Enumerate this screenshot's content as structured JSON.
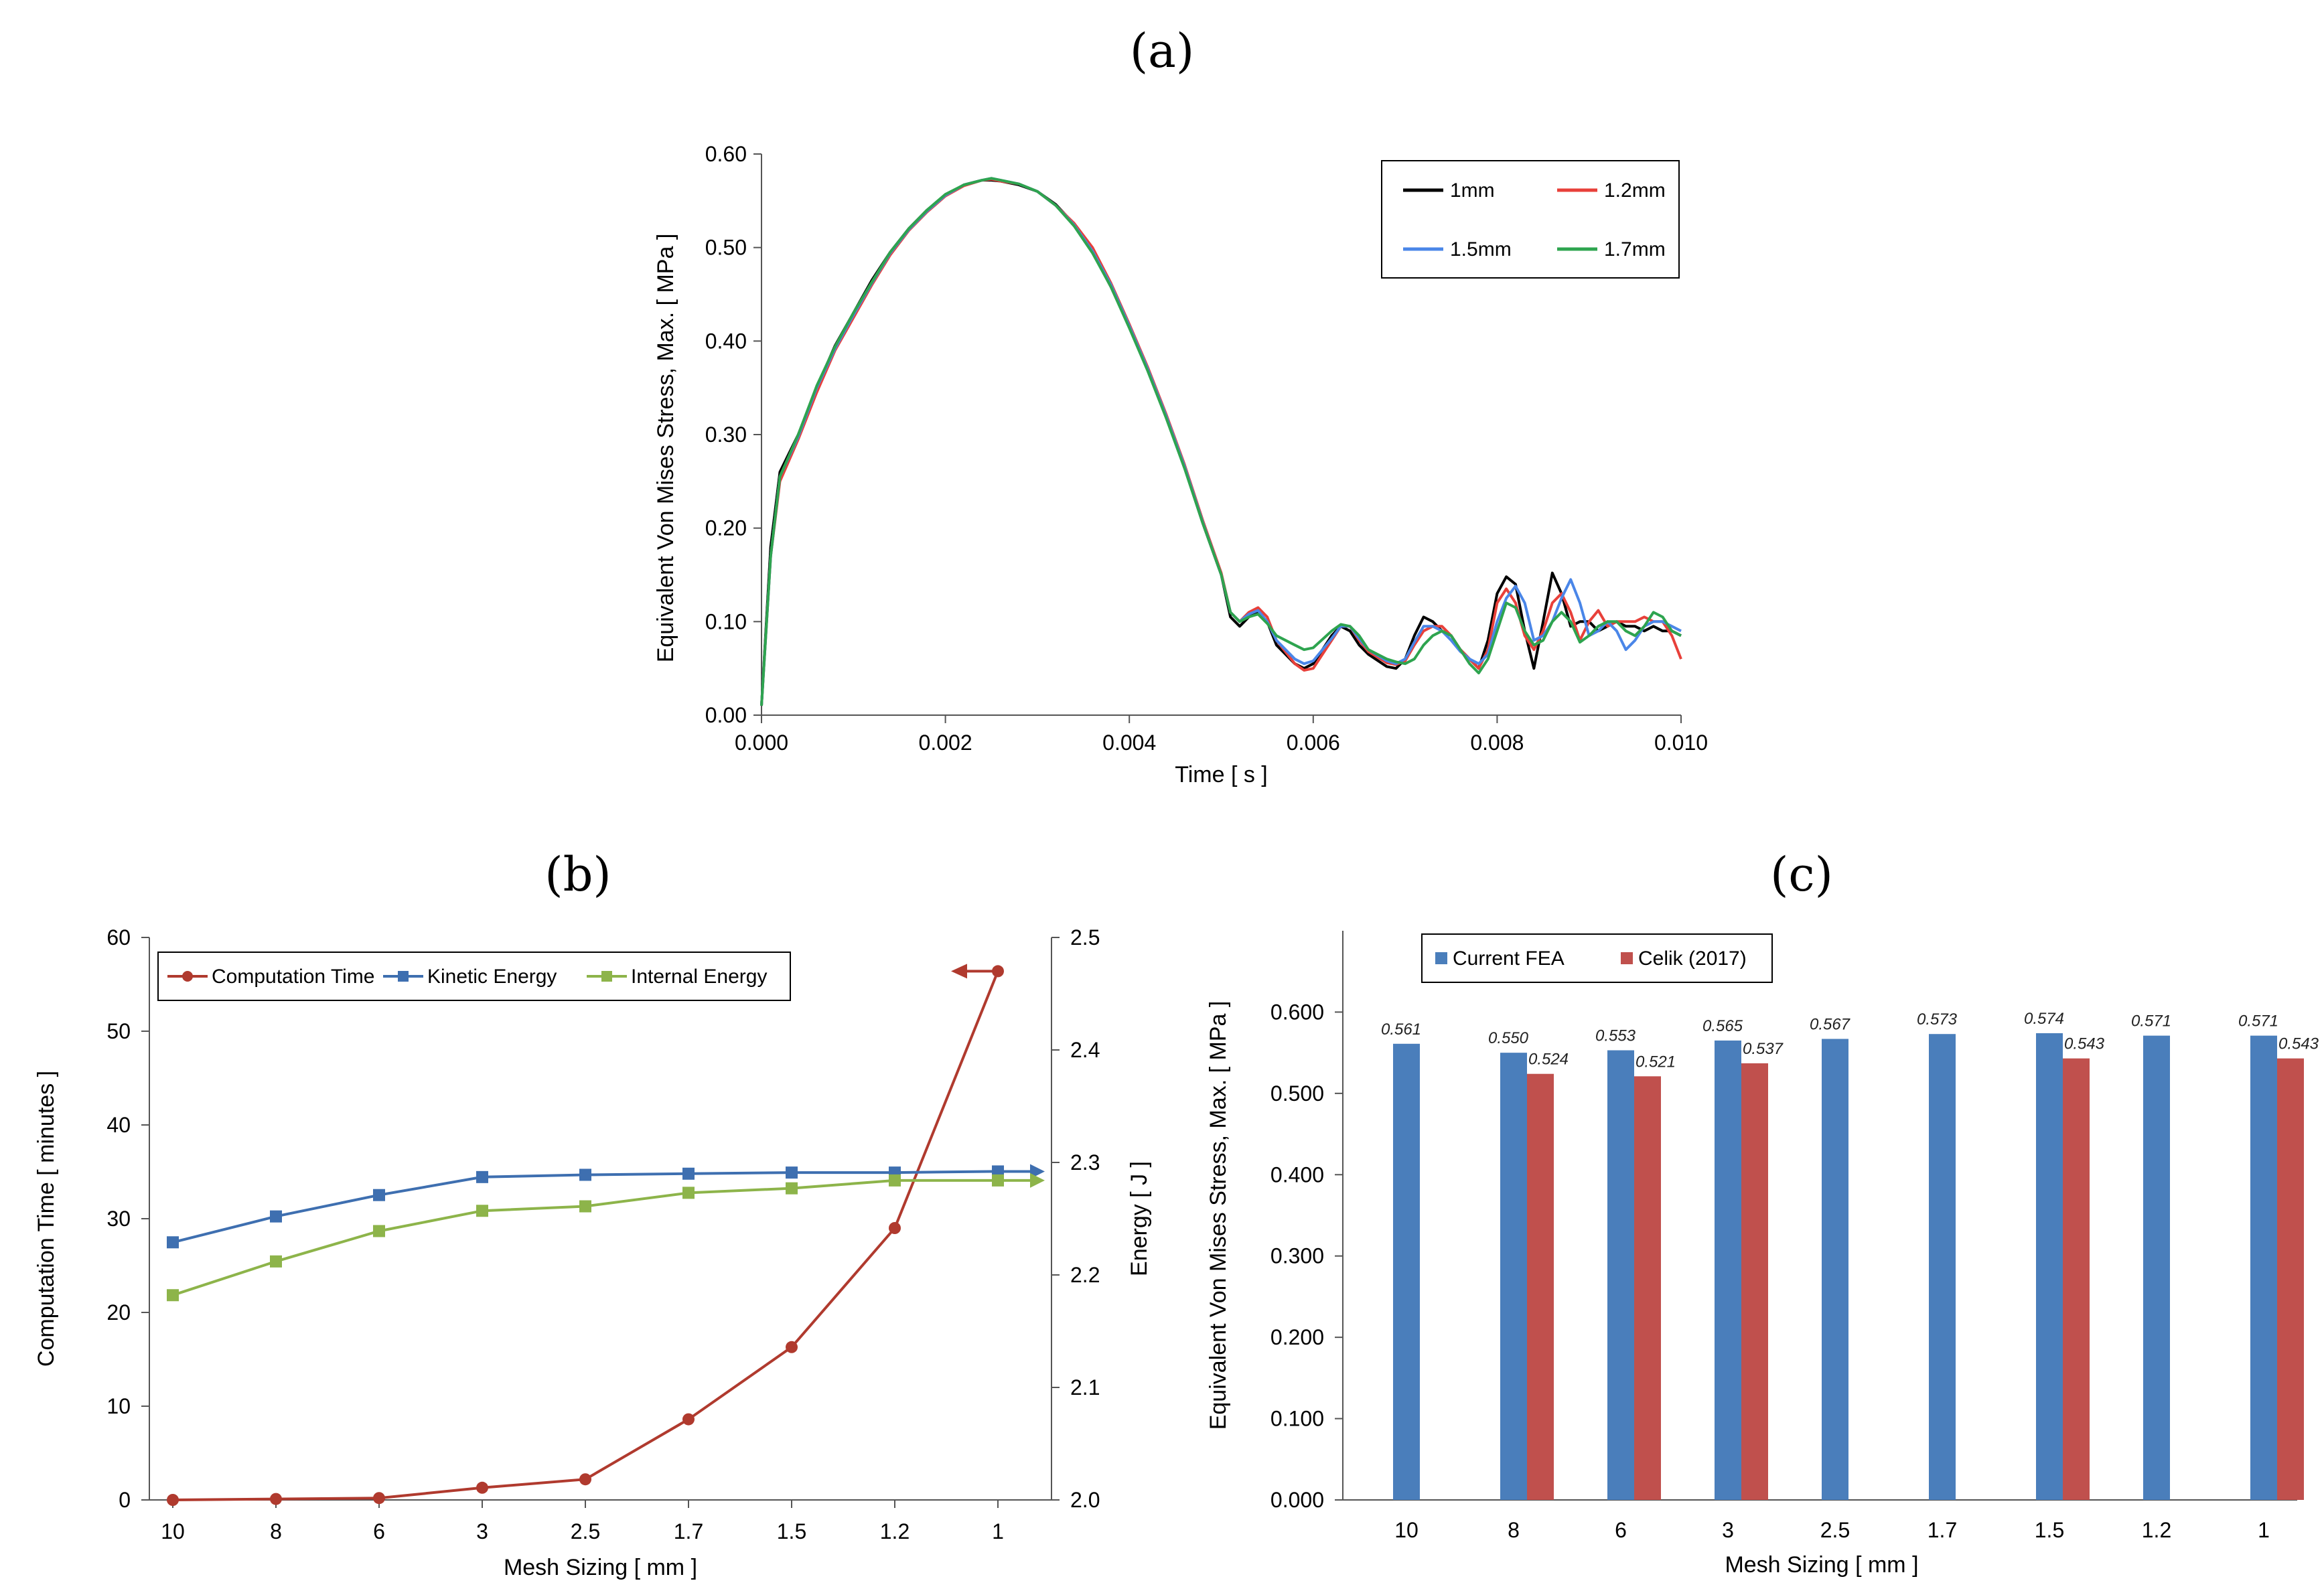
{
  "colors": {
    "black": "#000000",
    "red": "#e8403a",
    "blue": "#4a86e8",
    "green": "#2ea44f",
    "comp_red": "#b03a2e",
    "kinetic_blue": "#3e6fb0",
    "internal_green": "#8db44a",
    "bar_blue": "#4a7ebb",
    "bar_red": "#c0504d"
  },
  "chart_data": [
    {
      "id": "a",
      "panel_label": "(a)",
      "type": "line",
      "xlabel": "Time [ s ]",
      "ylabel": "Equivalent Von Mises Stress, Max. [ MPa ]",
      "xlim": [
        0,
        0.01
      ],
      "ylim": [
        0,
        0.6
      ],
      "x_ticks": [
        "0.000",
        "0.002",
        "0.004",
        "0.006",
        "0.008",
        "0.010"
      ],
      "y_ticks": [
        "0.00",
        "0.10",
        "0.20",
        "0.30",
        "0.40",
        "0.50",
        "0.60"
      ],
      "legend": [
        "1mm",
        "1.2mm",
        "1.5mm",
        "1.7mm"
      ],
      "series": [
        {
          "name": "1mm",
          "color_key": "black",
          "x": [
            0,
            0.0001,
            0.0002,
            0.0004,
            0.0006,
            0.0008,
            0.001,
            0.0012,
            0.0014,
            0.0016,
            0.0018,
            0.002,
            0.0022,
            0.0024,
            0.0025,
            0.0026,
            0.0028,
            0.003,
            0.0032,
            0.0034,
            0.0036,
            0.0038,
            0.004,
            0.0042,
            0.0044,
            0.0046,
            0.0048,
            0.005,
            0.0051,
            0.0052,
            0.0053,
            0.0054,
            0.0055,
            0.0056,
            0.0058,
            0.0059,
            0.006,
            0.0062,
            0.0063,
            0.0064,
            0.0065,
            0.0066,
            0.0068,
            0.0069,
            0.007,
            0.0071,
            0.0072,
            0.0073,
            0.0074,
            0.0075,
            0.0076,
            0.0077,
            0.0078,
            0.0079,
            0.008,
            0.0081,
            0.0082,
            0.0083,
            0.0084,
            0.0085,
            0.0086,
            0.0087,
            0.0088,
            0.0089,
            0.009,
            0.0091,
            0.0092,
            0.0093,
            0.0094,
            0.0095,
            0.0096,
            0.0097,
            0.0098,
            0.0099,
            0.01
          ],
          "y": [
            0.01,
            0.18,
            0.26,
            0.3,
            0.35,
            0.395,
            0.43,
            0.465,
            0.495,
            0.52,
            0.54,
            0.556,
            0.567,
            0.572,
            0.572,
            0.571,
            0.567,
            0.56,
            0.546,
            0.525,
            0.495,
            0.458,
            0.415,
            0.37,
            0.32,
            0.265,
            0.205,
            0.15,
            0.105,
            0.095,
            0.105,
            0.11,
            0.1,
            0.075,
            0.055,
            0.05,
            0.055,
            0.085,
            0.095,
            0.09,
            0.075,
            0.065,
            0.052,
            0.05,
            0.06,
            0.085,
            0.105,
            0.1,
            0.09,
            0.085,
            0.07,
            0.06,
            0.05,
            0.08,
            0.13,
            0.148,
            0.14,
            0.09,
            0.05,
            0.1,
            0.152,
            0.13,
            0.095,
            0.1,
            0.1,
            0.09,
            0.095,
            0.1,
            0.095,
            0.095,
            0.09,
            0.095,
            0.09,
            0.09,
            0.085
          ]
        },
        {
          "name": "1.2mm",
          "color_key": "red",
          "x": [
            0,
            0.0001,
            0.0002,
            0.0004,
            0.0006,
            0.0008,
            0.001,
            0.0012,
            0.0014,
            0.0016,
            0.0018,
            0.002,
            0.0022,
            0.0024,
            0.0025,
            0.0026,
            0.0028,
            0.003,
            0.0032,
            0.0034,
            0.0036,
            0.0038,
            0.004,
            0.0042,
            0.0044,
            0.0046,
            0.0048,
            0.005,
            0.0051,
            0.0052,
            0.0053,
            0.0054,
            0.0055,
            0.0056,
            0.0058,
            0.0059,
            0.006,
            0.0062,
            0.0063,
            0.0064,
            0.0065,
            0.0066,
            0.0068,
            0.0069,
            0.007,
            0.0071,
            0.0072,
            0.0073,
            0.0074,
            0.0075,
            0.0076,
            0.0077,
            0.0078,
            0.0079,
            0.008,
            0.0081,
            0.0082,
            0.0083,
            0.0084,
            0.0085,
            0.0086,
            0.0087,
            0.0088,
            0.0089,
            0.009,
            0.0091,
            0.0092,
            0.0093,
            0.0094,
            0.0095,
            0.0096,
            0.0097,
            0.0098,
            0.0099,
            0.01
          ],
          "y": [
            0.01,
            0.17,
            0.25,
            0.295,
            0.345,
            0.39,
            0.425,
            0.46,
            0.492,
            0.518,
            0.538,
            0.555,
            0.566,
            0.572,
            0.573,
            0.571,
            0.568,
            0.56,
            0.545,
            0.526,
            0.5,
            0.462,
            0.418,
            0.372,
            0.322,
            0.268,
            0.208,
            0.152,
            0.11,
            0.1,
            0.11,
            0.115,
            0.105,
            0.08,
            0.055,
            0.048,
            0.05,
            0.08,
            0.095,
            0.095,
            0.08,
            0.068,
            0.056,
            0.054,
            0.058,
            0.075,
            0.09,
            0.095,
            0.095,
            0.085,
            0.07,
            0.06,
            0.05,
            0.07,
            0.12,
            0.135,
            0.12,
            0.085,
            0.07,
            0.09,
            0.12,
            0.13,
            0.11,
            0.08,
            0.1,
            0.112,
            0.095,
            0.1,
            0.1,
            0.1,
            0.105,
            0.1,
            0.1,
            0.085,
            0.06
          ]
        },
        {
          "name": "1.5mm",
          "color_key": "blue",
          "x": [
            0,
            0.0001,
            0.0002,
            0.0004,
            0.0006,
            0.0008,
            0.001,
            0.0012,
            0.0014,
            0.0016,
            0.0018,
            0.002,
            0.0022,
            0.0024,
            0.0025,
            0.0026,
            0.0028,
            0.003,
            0.0032,
            0.0034,
            0.0036,
            0.0038,
            0.004,
            0.0042,
            0.0044,
            0.0046,
            0.0048,
            0.005,
            0.0051,
            0.0052,
            0.0053,
            0.0054,
            0.0055,
            0.0056,
            0.0058,
            0.0059,
            0.006,
            0.0062,
            0.0063,
            0.0064,
            0.0065,
            0.0066,
            0.0068,
            0.0069,
            0.007,
            0.0071,
            0.0072,
            0.0073,
            0.0074,
            0.0075,
            0.0076,
            0.0077,
            0.0078,
            0.0079,
            0.008,
            0.0081,
            0.0082,
            0.0083,
            0.0084,
            0.0085,
            0.0086,
            0.0087,
            0.0088,
            0.0089,
            0.009,
            0.0091,
            0.0092,
            0.0093,
            0.0094,
            0.0095,
            0.0096,
            0.0097,
            0.0098,
            0.0099,
            0.01
          ],
          "y": [
            0.01,
            0.17,
            0.255,
            0.298,
            0.35,
            0.392,
            0.428,
            0.462,
            0.494,
            0.519,
            0.539,
            0.556,
            0.567,
            0.572,
            0.574,
            0.572,
            0.568,
            0.56,
            0.545,
            0.524,
            0.496,
            0.46,
            0.416,
            0.37,
            0.32,
            0.266,
            0.206,
            0.15,
            0.11,
            0.1,
            0.108,
            0.112,
            0.1,
            0.08,
            0.06,
            0.055,
            0.058,
            0.082,
            0.095,
            0.095,
            0.082,
            0.07,
            0.058,
            0.055,
            0.06,
            0.078,
            0.095,
            0.095,
            0.09,
            0.08,
            0.068,
            0.06,
            0.055,
            0.065,
            0.1,
            0.125,
            0.138,
            0.12,
            0.08,
            0.085,
            0.1,
            0.125,
            0.145,
            0.12,
            0.085,
            0.09,
            0.1,
            0.09,
            0.07,
            0.08,
            0.095,
            0.1,
            0.1,
            0.095,
            0.09
          ]
        },
        {
          "name": "1.7mm",
          "color_key": "green",
          "x": [
            0,
            0.0001,
            0.0002,
            0.0004,
            0.0006,
            0.0008,
            0.001,
            0.0012,
            0.0014,
            0.0016,
            0.0018,
            0.002,
            0.0022,
            0.0024,
            0.0025,
            0.0026,
            0.0028,
            0.003,
            0.0032,
            0.0034,
            0.0036,
            0.0038,
            0.004,
            0.0042,
            0.0044,
            0.0046,
            0.0048,
            0.005,
            0.0051,
            0.0052,
            0.0053,
            0.0054,
            0.0055,
            0.0056,
            0.0058,
            0.0059,
            0.006,
            0.0062,
            0.0063,
            0.0064,
            0.0065,
            0.0066,
            0.0068,
            0.0069,
            0.007,
            0.0071,
            0.0072,
            0.0073,
            0.0074,
            0.0075,
            0.0076,
            0.0077,
            0.0078,
            0.0079,
            0.008,
            0.0081,
            0.0082,
            0.0083,
            0.0084,
            0.0085,
            0.0086,
            0.0087,
            0.0088,
            0.0089,
            0.009,
            0.0091,
            0.0092,
            0.0093,
            0.0094,
            0.0095,
            0.0096,
            0.0097,
            0.0098,
            0.0099,
            0.01
          ],
          "y": [
            0.01,
            0.17,
            0.255,
            0.3,
            0.352,
            0.394,
            0.43,
            0.463,
            0.495,
            0.52,
            0.54,
            0.557,
            0.567,
            0.572,
            0.574,
            0.572,
            0.568,
            0.56,
            0.545,
            0.523,
            0.494,
            0.458,
            0.414,
            0.368,
            0.318,
            0.264,
            0.205,
            0.15,
            0.11,
            0.1,
            0.105,
            0.108,
            0.098,
            0.085,
            0.075,
            0.07,
            0.072,
            0.09,
            0.097,
            0.095,
            0.085,
            0.07,
            0.06,
            0.057,
            0.055,
            0.06,
            0.075,
            0.085,
            0.09,
            0.085,
            0.07,
            0.055,
            0.045,
            0.06,
            0.09,
            0.12,
            0.115,
            0.09,
            0.075,
            0.08,
            0.1,
            0.11,
            0.1,
            0.078,
            0.085,
            0.095,
            0.1,
            0.1,
            0.09,
            0.085,
            0.095,
            0.11,
            0.105,
            0.09,
            0.085
          ]
        }
      ]
    },
    {
      "id": "b",
      "panel_label": "(b)",
      "type": "line",
      "xlabel": "Mesh Sizing [ mm ]",
      "ylabel": "Computation Time [ minutes ]",
      "ylabel_right": "Energy [ J ]",
      "categories": [
        "10",
        "8",
        "6",
        "3",
        "2.5",
        "1.7",
        "1.5",
        "1.2",
        "1"
      ],
      "ylim": [
        0,
        60
      ],
      "ylim_right": [
        2.0,
        2.5
      ],
      "y_ticks": [
        "0",
        "10",
        "20",
        "30",
        "40",
        "50",
        "60"
      ],
      "y_ticks_right": [
        "2.0",
        "2.1",
        "2.2",
        "2.3",
        "2.4",
        "2.5"
      ],
      "series": [
        {
          "name": "Computation Time",
          "axis": "left",
          "color_key": "comp_red",
          "marker": "circle",
          "values": [
            0.0,
            0.1,
            0.2,
            1.3,
            2.2,
            8.6,
            16.3,
            29.0,
            56.4
          ]
        },
        {
          "name": "Kinetic Energy",
          "axis": "right",
          "color_key": "kinetic_blue",
          "marker": "square",
          "values": [
            2.229,
            2.252,
            2.271,
            2.287,
            2.289,
            2.29,
            2.291,
            2.291,
            2.292
          ]
        },
        {
          "name": "Internal Energy",
          "axis": "right",
          "color_key": "internal_green",
          "marker": "square",
          "values": [
            2.182,
            2.212,
            2.239,
            2.257,
            2.261,
            2.273,
            2.277,
            2.284,
            2.284
          ]
        }
      ]
    },
    {
      "id": "c",
      "panel_label": "(c)",
      "type": "bar",
      "xlabel": "Mesh Sizing [ mm ]",
      "ylabel": "Equivalent Von Mises Stress, Max. [ MPa ]",
      "categories": [
        "10",
        "8",
        "6",
        "3",
        "2.5",
        "1.7",
        "1.5",
        "1.2",
        "1"
      ],
      "ylim": [
        0,
        0.7
      ],
      "y_ticks": [
        "0.000",
        "0.100",
        "0.200",
        "0.300",
        "0.400",
        "0.500",
        "0.600"
      ],
      "series": [
        {
          "name": "Current FEA",
          "color_key": "bar_blue",
          "values": [
            0.561,
            0.55,
            0.553,
            0.565,
            0.567,
            0.573,
            0.574,
            0.571,
            0.571
          ],
          "labels": [
            "0.561",
            "0.550",
            "0.553",
            "0.565",
            "0.567",
            "0.573",
            "0.574",
            "0.571",
            "0.571"
          ]
        },
        {
          "name": "Celik (2017)",
          "color_key": "bar_red",
          "values": [
            null,
            0.524,
            0.521,
            0.537,
            null,
            null,
            0.543,
            null,
            0.543
          ],
          "labels": [
            null,
            "0.524",
            "0.521",
            "0.537",
            null,
            null,
            "0.543",
            null,
            "0.543"
          ]
        }
      ]
    }
  ]
}
